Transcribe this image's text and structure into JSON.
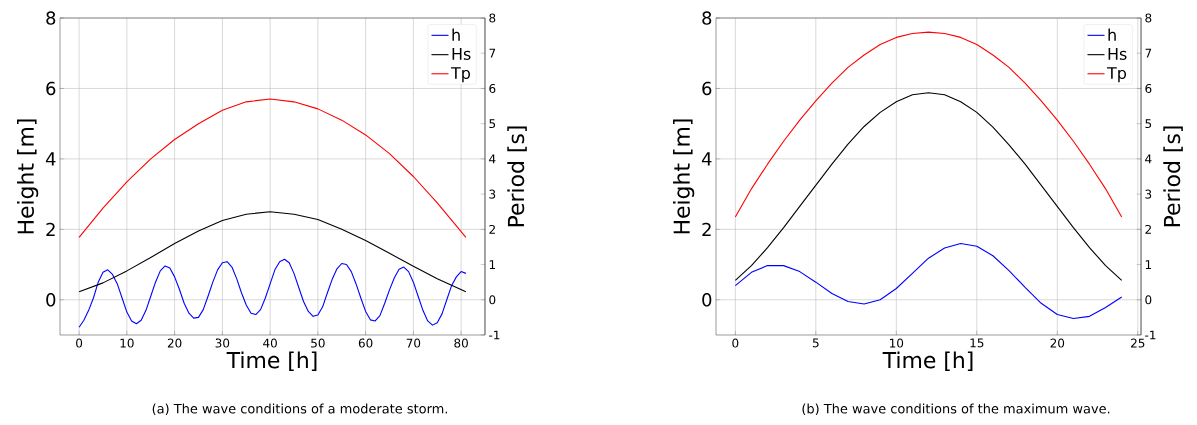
{
  "chart_data": [
    {
      "type": "line",
      "xlabel": "Time [h]",
      "ylabel": "Height [m]",
      "y2label": "Period [s]",
      "annotations": [
        "(a) The wave conditions of a moderate storm."
      ],
      "xlim": [
        -4,
        85
      ],
      "xticks": [
        0,
        10,
        20,
        30,
        40,
        50,
        60,
        70,
        80
      ],
      "ylim": [
        -1,
        8
      ],
      "yticks": [
        0,
        2,
        4,
        6,
        8
      ],
      "y2lim": [
        -1,
        8
      ],
      "y2ticks": [
        -1,
        0,
        1,
        2,
        3,
        4,
        5,
        6,
        7,
        8
      ],
      "grid": true,
      "legend": "top right",
      "series": [
        {
          "name": "h",
          "color": "#0000ff",
          "x": [
            0,
            1,
            2,
            3,
            4,
            5,
            6,
            7,
            8,
            9,
            10,
            11,
            12,
            13,
            14,
            15,
            16,
            17,
            18,
            19,
            20,
            21,
            22,
            23,
            24,
            25,
            26,
            27,
            28,
            29,
            30,
            31,
            32,
            33,
            34,
            35,
            36,
            37,
            38,
            39,
            40,
            41,
            42,
            43,
            44,
            45,
            46,
            47,
            48,
            49,
            50,
            51,
            52,
            53,
            54,
            55,
            56,
            57,
            58,
            59,
            60,
            61,
            62,
            63,
            64,
            65,
            66,
            67,
            68,
            69,
            70,
            71,
            72,
            73,
            74,
            75,
            76,
            77,
            78,
            79,
            80,
            81
          ],
          "values": [
            -0.78,
            -0.58,
            -0.3,
            0.05,
            0.5,
            0.78,
            0.85,
            0.72,
            0.45,
            0.05,
            -0.35,
            -0.6,
            -0.68,
            -0.58,
            -0.3,
            0.1,
            0.5,
            0.82,
            0.96,
            0.9,
            0.65,
            0.3,
            -0.1,
            -0.38,
            -0.52,
            -0.5,
            -0.28,
            0.1,
            0.5,
            0.85,
            1.05,
            1.08,
            0.93,
            0.6,
            0.2,
            -0.15,
            -0.38,
            -0.42,
            -0.28,
            0.05,
            0.45,
            0.85,
            1.08,
            1.15,
            1.05,
            0.75,
            0.35,
            -0.05,
            -0.33,
            -0.47,
            -0.43,
            -0.2,
            0.2,
            0.58,
            0.88,
            1.03,
            1.0,
            0.8,
            0.45,
            0.05,
            -0.33,
            -0.57,
            -0.6,
            -0.45,
            -0.1,
            0.28,
            0.62,
            0.87,
            0.93,
            0.8,
            0.5,
            0.1,
            -0.3,
            -0.6,
            -0.72,
            -0.65,
            -0.4,
            0.0,
            0.4,
            0.65,
            0.8,
            0.75
          ]
        },
        {
          "name": "Hs",
          "color": "#000000",
          "x": [
            0,
            5,
            10,
            15,
            20,
            25,
            30,
            35,
            40,
            45,
            50,
            55,
            60,
            65,
            70,
            75,
            81
          ],
          "values": [
            0.23,
            0.48,
            0.82,
            1.2,
            1.6,
            1.95,
            2.25,
            2.43,
            2.5,
            2.43,
            2.28,
            2.0,
            1.68,
            1.32,
            0.95,
            0.6,
            0.23
          ]
        },
        {
          "name": "Tp",
          "color": "#ff0000",
          "axis": "y2",
          "x": [
            0,
            5,
            10,
            15,
            20,
            25,
            30,
            35,
            40,
            45,
            50,
            55,
            60,
            65,
            70,
            75,
            81
          ],
          "values": [
            1.77,
            2.6,
            3.35,
            4.0,
            4.55,
            5.0,
            5.38,
            5.62,
            5.7,
            5.62,
            5.42,
            5.1,
            4.68,
            4.15,
            3.5,
            2.75,
            1.77
          ]
        }
      ]
    },
    {
      "type": "line",
      "xlabel": "Time [h]",
      "ylabel": "Height [m]",
      "y2label": "Period [s]",
      "annotations": [
        "(b) The wave conditions of the maximum wave."
      ],
      "xlim": [
        -1.2,
        25.2
      ],
      "xticks": [
        0,
        5,
        10,
        15,
        20,
        25
      ],
      "ylim": [
        -1,
        8
      ],
      "yticks": [
        0,
        2,
        4,
        6,
        8
      ],
      "y2lim": [
        -1,
        8
      ],
      "y2ticks": [
        -1,
        0,
        1,
        2,
        3,
        4,
        5,
        6,
        7,
        8
      ],
      "grid": true,
      "legend": "top right",
      "series": [
        {
          "name": "h",
          "color": "#0000ff",
          "x": [
            0,
            1,
            2,
            3,
            4,
            5,
            6,
            7,
            8,
            9,
            10,
            11,
            12,
            13,
            14,
            15,
            16,
            17,
            18,
            19,
            20,
            21,
            22,
            23,
            24
          ],
          "values": [
            0.4,
            0.78,
            0.97,
            0.97,
            0.8,
            0.5,
            0.18,
            -0.05,
            -0.12,
            0.0,
            0.32,
            0.75,
            1.18,
            1.47,
            1.6,
            1.52,
            1.25,
            0.83,
            0.35,
            -0.1,
            -0.42,
            -0.53,
            -0.47,
            -0.22,
            0.08
          ]
        },
        {
          "name": "Hs",
          "color": "#000000",
          "x": [
            0,
            1,
            2,
            3,
            4,
            5,
            6,
            7,
            8,
            9,
            10,
            11,
            12,
            13,
            14,
            15,
            16,
            17,
            18,
            19,
            20,
            21,
            22,
            23,
            24
          ],
          "values": [
            0.55,
            0.97,
            1.48,
            2.05,
            2.65,
            3.25,
            3.85,
            4.42,
            4.92,
            5.32,
            5.62,
            5.82,
            5.88,
            5.82,
            5.62,
            5.32,
            4.9,
            4.4,
            3.85,
            3.25,
            2.65,
            2.05,
            1.48,
            0.97,
            0.55
          ]
        },
        {
          "name": "Tp",
          "color": "#ff0000",
          "axis": "y2",
          "x": [
            0,
            1,
            2,
            3,
            4,
            5,
            6,
            7,
            8,
            9,
            10,
            11,
            12,
            13,
            14,
            15,
            16,
            17,
            18,
            19,
            20,
            21,
            22,
            23,
            24
          ],
          "values": [
            2.35,
            3.15,
            3.85,
            4.5,
            5.1,
            5.65,
            6.15,
            6.6,
            6.95,
            7.25,
            7.45,
            7.56,
            7.6,
            7.56,
            7.45,
            7.25,
            6.95,
            6.6,
            6.15,
            5.65,
            5.1,
            4.5,
            3.85,
            3.15,
            2.35
          ]
        }
      ]
    }
  ]
}
